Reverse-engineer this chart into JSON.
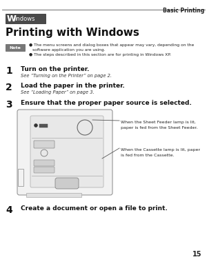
{
  "bg_color": "#ffffff",
  "header_text": "Basic Printing",
  "windows_badge_text_W": "W",
  "windows_badge_text_rest": "indows",
  "title_text": "Printing with Windows",
  "note_icon_text": "Note",
  "bullet1_line1": "The menu screens and dialog boxes that appear may vary, depending on the",
  "bullet1_line2": "software application you are using.",
  "bullet2": "The steps described in this section are for printing in Windows XP.",
  "step1_num": "1",
  "step1_head": "Turn on the printer.",
  "step1_sub": "See “Turning on the Printer” on page 2.",
  "step2_num": "2",
  "step2_head": "Load the paper in the printer.",
  "step2_sub": "See “Loading Paper” on page 3.",
  "step3_num": "3",
  "step3_head": "Ensure that the proper paper source is selected.",
  "callout1_line1": "When the Sheet Feeder lamp is lit,",
  "callout1_line2": "paper is fed from the Sheet Feeder.",
  "callout2_line1": "When the Cassette lamp is lit, paper",
  "callout2_line2": "is fed from the Cassette.",
  "step4_num": "4",
  "step4_head": "Create a document or open a file to print.",
  "page_num": "15"
}
